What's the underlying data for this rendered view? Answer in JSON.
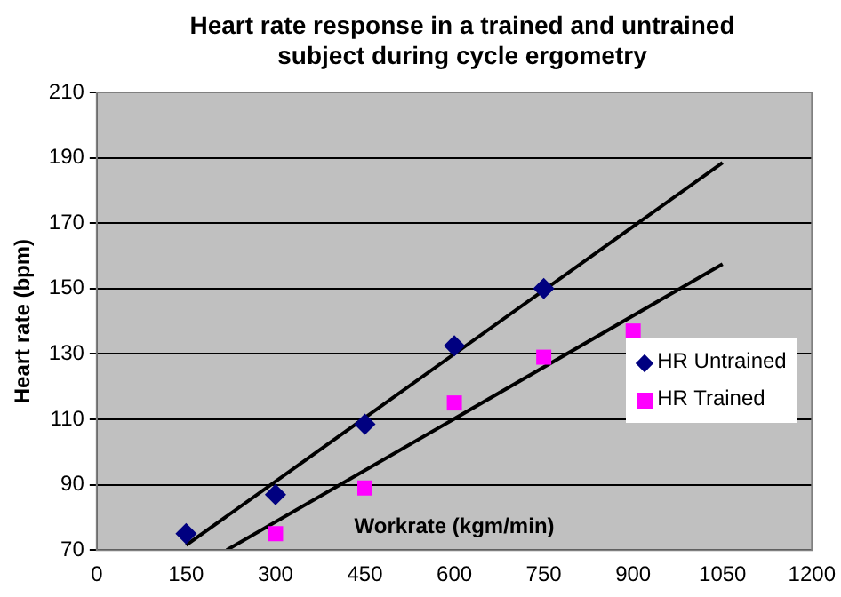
{
  "chart_data": {
    "type": "scatter",
    "title": "Heart rate response in a trained and untrained subject during cycle ergometry",
    "xlabel": "Workrate (kgm/min)",
    "ylabel": "Heart rate (bpm)",
    "series": [
      {
        "name": "HR Untrained",
        "color": "#000080",
        "marker": "diamond",
        "x": [
          150,
          300,
          450,
          600,
          750
        ],
        "values": [
          75,
          87,
          108.5,
          132.5,
          150
        ]
      },
      {
        "name": "HR Trained",
        "color": "#ff00ff",
        "marker": "square",
        "x": [
          300,
          450,
          600,
          750,
          900
        ],
        "values": [
          75,
          89,
          115,
          129,
          137
        ]
      },
      {
        "type": "line",
        "color": "#000000",
        "marker": "none",
        "x": [
          150,
          1050
        ],
        "values": [
          71.5,
          188.5
        ]
      },
      {
        "type": "line",
        "color": "#000000",
        "marker": "none",
        "x": [
          218,
          1050
        ],
        "values": [
          70,
          157.5
        ]
      }
    ],
    "xlim": [
      0,
      1200
    ],
    "xticks": [
      0,
      150,
      300,
      450,
      600,
      750,
      900,
      1050,
      1200
    ],
    "ylim": [
      70,
      210
    ],
    "yticks": [
      70,
      90,
      110,
      130,
      150,
      170,
      190,
      210
    ],
    "grid": "y",
    "legend": "right"
  }
}
